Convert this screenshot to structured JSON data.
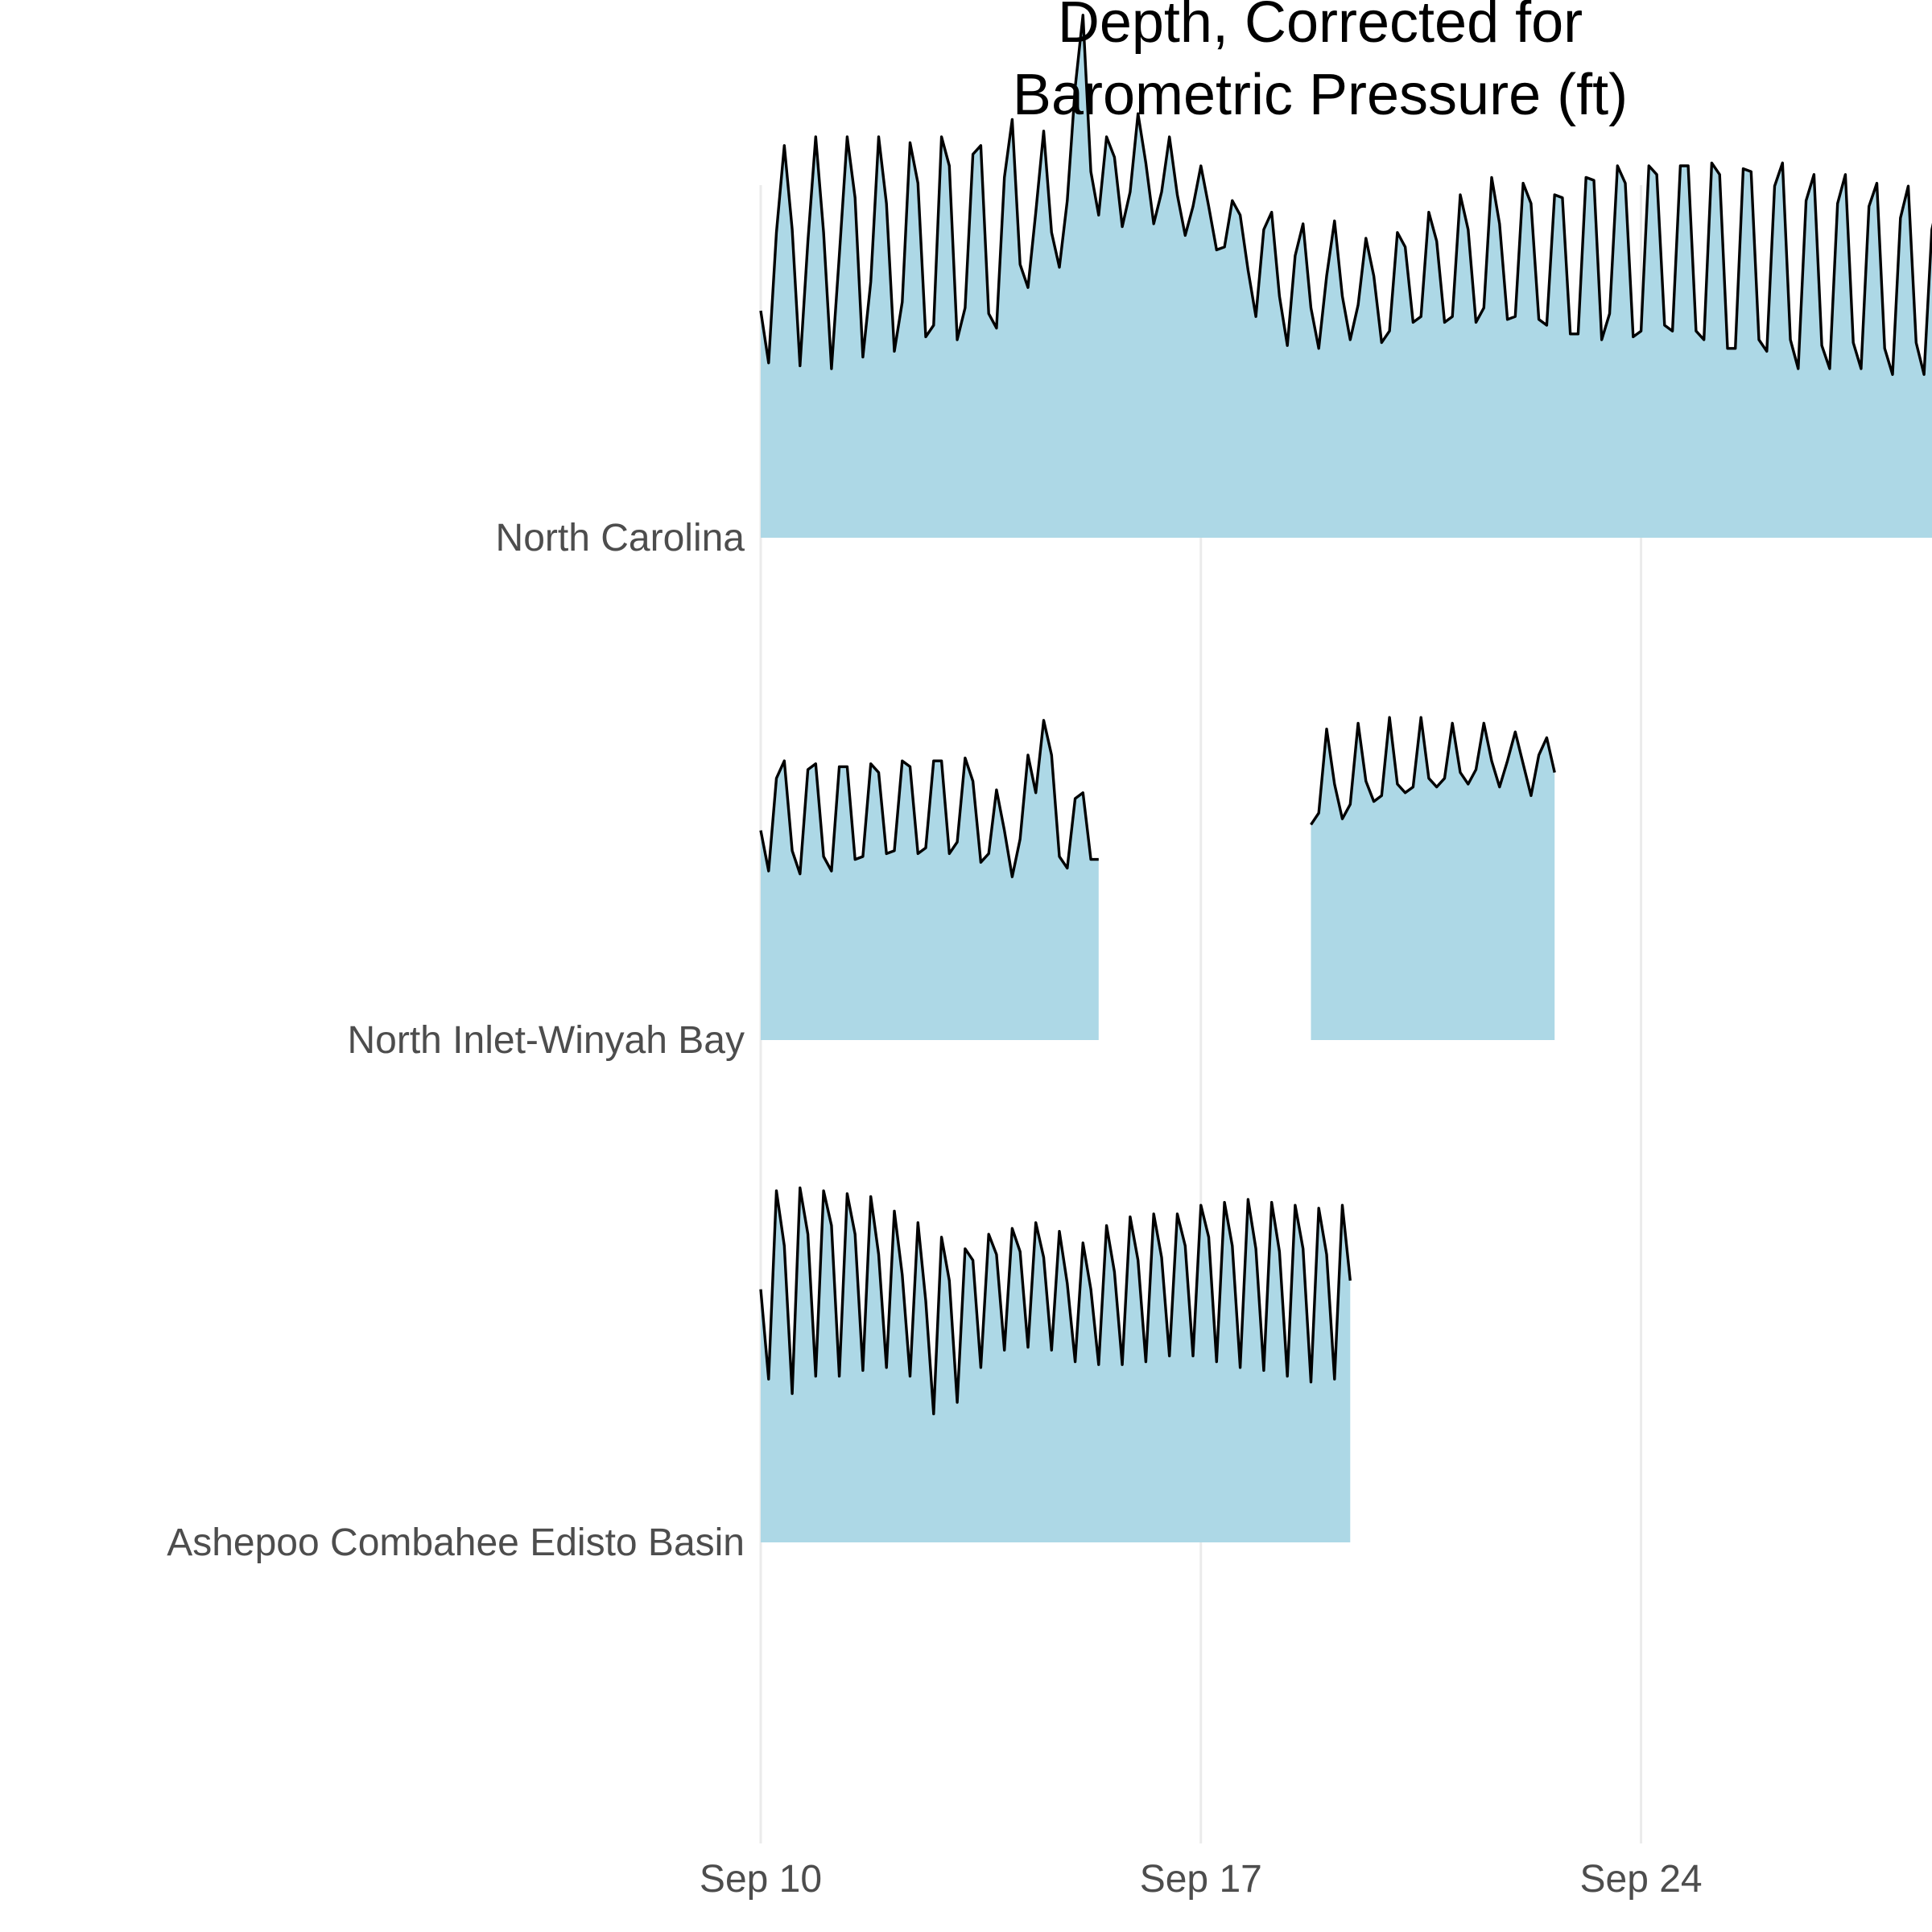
{
  "chart_data": {
    "type": "area",
    "title": [
      "Depth, Corrected for",
      "Barometric Pressure (ft)"
    ],
    "xlabel": "",
    "ylabel": "",
    "x_ticks": [
      "Sep 10",
      "Sep 17",
      "Sep 24"
    ],
    "x_tick_days": [
      10,
      17,
      24
    ],
    "x_range_days": [
      10,
      28
    ],
    "grid": true,
    "legend": "none",
    "fill_color": "#add8e6",
    "line_color": "#000000",
    "sample_step_days": 0.125,
    "y_scale": "relative depth, shared across sites",
    "series": [
      {
        "name": "North Carolina",
        "start_day": 10,
        "values": [
          0.2,
          0.02,
          0.47,
          0.77,
          0.48,
          0.01,
          0.44,
          0.8,
          0.47,
          -0.0,
          0.39,
          0.8,
          0.59,
          0.04,
          0.3,
          0.8,
          0.57,
          0.06,
          0.23,
          0.78,
          0.64,
          0.11,
          0.15,
          0.8,
          0.7,
          0.1,
          0.21,
          0.74,
          0.77,
          0.19,
          0.14,
          0.66,
          0.86,
          0.36,
          0.28,
          0.54,
          0.82,
          0.47,
          0.35,
          0.58,
          0.97,
          1.22,
          0.68,
          0.53,
          0.8,
          0.73,
          0.49,
          0.61,
          0.88,
          0.71,
          0.5,
          0.61,
          0.8,
          0.6,
          0.46,
          0.56,
          0.7,
          0.56,
          0.41,
          0.42,
          0.58,
          0.53,
          0.34,
          0.18,
          0.48,
          0.54,
          0.25,
          0.08,
          0.39,
          0.5,
          0.21,
          0.07,
          0.32,
          0.51,
          0.25,
          0.1,
          0.22,
          0.45,
          0.32,
          0.09,
          0.13,
          0.47,
          0.42,
          0.16,
          0.18,
          0.54,
          0.44,
          0.16,
          0.18,
          0.6,
          0.48,
          0.16,
          0.21,
          0.66,
          0.5,
          0.17,
          0.18,
          0.64,
          0.57,
          0.17,
          0.15,
          0.6,
          0.59,
          0.12,
          0.12,
          0.66,
          0.65,
          0.1,
          0.19,
          0.7,
          0.64,
          0.11,
          0.13,
          0.7,
          0.67,
          0.15,
          0.13,
          0.7,
          0.7,
          0.13,
          0.1,
          0.71,
          0.67,
          0.07,
          0.07,
          0.69,
          0.68,
          0.1,
          0.06,
          0.63,
          0.71,
          0.1,
          0.0,
          0.58,
          0.67,
          0.08,
          0.0,
          0.57,
          0.67,
          0.09,
          0.0,
          0.56,
          0.64,
          0.07,
          -0.02,
          0.52,
          0.63,
          0.09,
          -0.02,
          0.48,
          0.6,
          0.04
        ],
        "gaps": []
      },
      {
        "name": "North Inlet-Winyah Bay",
        "start_day": 10,
        "values": [
          0.14,
          -0.0,
          0.32,
          0.38,
          0.07,
          -0.01,
          0.35,
          0.37,
          0.05,
          0.0,
          0.36,
          0.36,
          0.04,
          0.05,
          0.37,
          0.34,
          0.06,
          0.07,
          0.38,
          0.36,
          0.06,
          0.08,
          0.38,
          0.38,
          0.06,
          0.1,
          0.39,
          0.31,
          0.03,
          0.06,
          0.28,
          0.14,
          -0.02,
          0.11,
          0.4,
          0.27,
          0.52,
          0.4,
          0.05,
          0.01,
          0.25,
          0.27,
          0.04,
          0.04,
          0.3,
          0.29,
          0.04,
          0.06,
          0.3,
          0.3,
          0.04,
          0.09,
          0.35,
          0.3,
          0.05,
          0.1,
          0.39,
          0.29,
          0.06,
          0.12,
          0.42,
          0.3,
          0.1,
          0.14,
          0.44,
          0.3,
          0.13,
          0.17,
          0.45,
          0.29,
          0.16,
          0.2,
          0.49,
          0.3,
          0.18,
          0.23,
          0.51,
          0.31,
          0.24,
          0.26,
          0.53,
          0.3,
          0.27,
          0.29,
          0.53,
          0.32,
          0.29,
          0.32,
          0.51,
          0.34,
          0.3,
          0.35,
          0.51,
          0.38,
          0.29,
          0.38,
          0.48,
          0.37,
          0.26,
          0.4,
          0.46,
          0.34
        ],
        "gaps": [
          [
            15.4,
            18.7
          ]
        ]
      },
      {
        "name": "Ashepoo Combahee Edisto Basin",
        "start_day": 10,
        "values": [
          0.29,
          -0.02,
          0.63,
          0.44,
          -0.07,
          0.64,
          0.48,
          -0.01,
          0.63,
          0.51,
          -0.01,
          0.62,
          0.48,
          0.01,
          0.61,
          0.41,
          0.02,
          0.56,
          0.34,
          -0.01,
          0.52,
          0.25,
          -0.14,
          0.47,
          0.32,
          -0.1,
          0.43,
          0.39,
          0.02,
          0.48,
          0.41,
          0.08,
          0.5,
          0.42,
          0.09,
          0.52,
          0.4,
          0.08,
          0.49,
          0.31,
          0.04,
          0.45,
          0.29,
          0.03,
          0.51,
          0.35,
          0.03,
          0.54,
          0.39,
          0.04,
          0.55,
          0.4,
          0.06,
          0.55,
          0.44,
          0.06,
          0.58,
          0.47,
          0.04,
          0.59,
          0.44,
          0.02,
          0.6,
          0.43,
          0.01,
          0.59,
          0.42,
          -0.01,
          0.58,
          0.43,
          -0.03,
          0.57,
          0.41,
          -0.02,
          0.58,
          0.32
        ],
        "gaps": []
      }
    ]
  }
}
